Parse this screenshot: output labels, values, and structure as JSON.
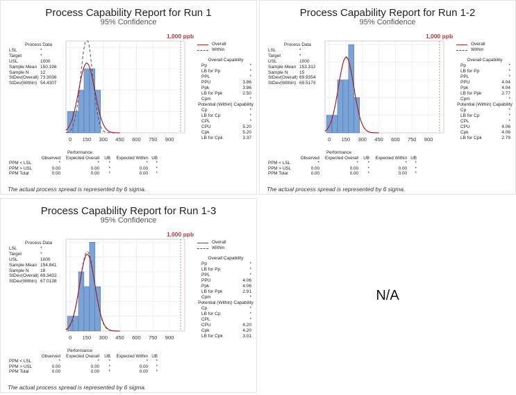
{
  "chart_data": [
    {
      "type": "bar",
      "title": "Process Capability Report for Run 1",
      "subtitle": "95% Confidence",
      "usl_label": "1,000 ppb",
      "usl": 1000,
      "xlim": [
        -38,
        1038
      ],
      "xticks": [
        "0",
        "150",
        "300",
        "450",
        "600",
        "750",
        "900"
      ],
      "xtick_values": [
        0,
        150,
        300,
        450,
        600,
        750,
        900
      ],
      "bin_edges": [
        -25,
        25,
        75,
        125,
        175,
        225,
        275
      ],
      "values": [
        1,
        1,
        2,
        3,
        3,
        2
      ],
      "ymax": 4.3,
      "mean": 150.198,
      "sd_overall": 73.3036,
      "sd_within": 54.4307,
      "n": 12,
      "legend": [
        "Overall",
        "Within"
      ],
      "legend_position": "right",
      "process_data": {
        "header": "Process Data",
        "rows": [
          [
            "LSL",
            "*"
          ],
          [
            "Target",
            "*"
          ],
          [
            "USL",
            "1000"
          ],
          [
            "Sample Mean",
            "150.198"
          ],
          [
            "Sample N",
            "12"
          ],
          [
            "StDev(Overall)",
            "73.3036"
          ],
          [
            "StDev(Within)",
            "54.4307"
          ]
        ]
      },
      "overall_capability": {
        "header": "Overall Capability",
        "rows": [
          [
            "Pp",
            "*"
          ],
          [
            "LB for Pp",
            "*"
          ],
          [
            "PPL",
            "*"
          ],
          [
            "PPU",
            "3.86"
          ],
          [
            "Ppk",
            "3.86"
          ],
          [
            "LB for Ppk",
            "2.50"
          ],
          [
            "Cpm",
            "*"
          ]
        ]
      },
      "within_capability": {
        "header": "Potential (Within) Capability",
        "rows": [
          [
            "Cp",
            "*"
          ],
          [
            "LB for Cp",
            "*"
          ],
          [
            "CPL",
            "*"
          ],
          [
            "CPU",
            "5.20"
          ],
          [
            "Cpk",
            "5.20"
          ],
          [
            "LB for Cpk",
            "3.37"
          ]
        ]
      },
      "performance": {
        "group_header": "Performance",
        "columns": [
          "",
          "Observed",
          "Expected Overall",
          "UB",
          "Expected Within",
          "UB"
        ],
        "rows": [
          [
            "PPM < LSL",
            "*",
            "*",
            "*",
            "*",
            "*"
          ],
          [
            "PPM > USL",
            "0.00",
            "0.00",
            "*",
            "0.00",
            "*"
          ],
          [
            "PPM Total",
            "0.00",
            "0.00",
            "*",
            "0.00",
            "*"
          ]
        ]
      },
      "note": "The actual process spread is represented by 6 sigma."
    },
    {
      "type": "bar",
      "title": "Process Capability Report for Run 1-2",
      "subtitle": "95% Confidence",
      "usl_label": "1,000 ppb",
      "usl": 1000,
      "xlim": [
        -38,
        1038
      ],
      "xticks": [
        "0",
        "150",
        "300",
        "450",
        "600",
        "750",
        "900"
      ],
      "xtick_values": [
        0,
        150,
        300,
        450,
        600,
        750,
        900
      ],
      "bin_edges": [
        -25,
        25,
        75,
        125,
        175,
        225,
        275
      ],
      "values": [
        1,
        1,
        3,
        3,
        5,
        2
      ],
      "ymax": 5.2,
      "mean": 153.312,
      "sd_overall": 69.9354,
      "sd_within": 69.5173,
      "n": 15,
      "legend": [
        "Overall",
        "Within"
      ],
      "legend_position": "right",
      "process_data": {
        "header": "Process Data",
        "rows": [
          [
            "LSL",
            "*"
          ],
          [
            "Target",
            "*"
          ],
          [
            "USL",
            "1000"
          ],
          [
            "Sample Mean",
            "153.312"
          ],
          [
            "Sample N",
            "15"
          ],
          [
            "StDev(Overall)",
            "69.9354"
          ],
          [
            "StDev(Within)",
            "69.5173"
          ]
        ]
      },
      "overall_capability": {
        "header": "Overall Capability",
        "rows": [
          [
            "Pp",
            "*"
          ],
          [
            "LB for Pp",
            "*"
          ],
          [
            "PPL",
            "*"
          ],
          [
            "PPU",
            "4.04"
          ],
          [
            "Ppk",
            "4.04"
          ],
          [
            "LB for Ppk",
            "2.77"
          ],
          [
            "Cpm",
            "*"
          ]
        ]
      },
      "within_capability": {
        "header": "Potential (Within) Capability",
        "rows": [
          [
            "Cp",
            "*"
          ],
          [
            "LB for Cp",
            "*"
          ],
          [
            "CPL",
            "*"
          ],
          [
            "CPU",
            "4.06"
          ],
          [
            "Cpk",
            "4.06"
          ],
          [
            "LB for Cpk",
            "2.79"
          ]
        ]
      },
      "performance": {
        "group_header": "Performance",
        "columns": [
          "",
          "Observed",
          "Expected Overall",
          "UB",
          "Expected Within",
          "UB"
        ],
        "rows": [
          [
            "PPM < LSL",
            "*",
            "*",
            "*",
            "*",
            "*"
          ],
          [
            "PPM > USL",
            "0.00",
            "0.00",
            "*",
            "0.00",
            "*"
          ],
          [
            "PPM Total",
            "0.00",
            "0.00",
            "*",
            "0.00",
            "*"
          ]
        ]
      },
      "note": "The actual process spread is represented by 6 sigma."
    },
    {
      "type": "bar",
      "title": "Process Capability Report for Run 1-3",
      "subtitle": "95% Confidence",
      "usl_label": "1,000 ppb",
      "usl": 1000,
      "xlim": [
        -38,
        1038
      ],
      "xticks": [
        "0",
        "150",
        "300",
        "450",
        "600",
        "750",
        "900"
      ],
      "xtick_values": [
        0,
        150,
        300,
        450,
        600,
        750,
        900
      ],
      "bin_edges": [
        -25,
        25,
        75,
        125,
        175,
        225,
        275
      ],
      "values": [
        1,
        1,
        4,
        3,
        6,
        3
      ],
      "ymax": 6.2,
      "mean": 154.841,
      "sd_overall": 69.3432,
      "sd_within": 67.0138,
      "n": 18,
      "legend": [
        "Overall",
        "Within"
      ],
      "legend_position": "right",
      "process_data": {
        "header": "Process Data",
        "rows": [
          [
            "LSL",
            "*"
          ],
          [
            "Target",
            "*"
          ],
          [
            "USL",
            "1000"
          ],
          [
            "Sample Mean",
            "154.841"
          ],
          [
            "Sample N",
            "18"
          ],
          [
            "StDev(Overall)",
            "69.3432"
          ],
          [
            "StDev(Within)",
            "67.0138"
          ]
        ]
      },
      "overall_capability": {
        "header": "Overall Capability",
        "rows": [
          [
            "Pp",
            "*"
          ],
          [
            "LB for Pp",
            "*"
          ],
          [
            "PPL",
            "*"
          ],
          [
            "PPU",
            "4.06"
          ],
          [
            "Ppk",
            "4.06"
          ],
          [
            "LB for Ppk",
            "2.91"
          ],
          [
            "Cpm",
            "*"
          ]
        ]
      },
      "within_capability": {
        "header": "Potential (Within) Capability",
        "rows": [
          [
            "Cp",
            "*"
          ],
          [
            "LB for Cp",
            "*"
          ],
          [
            "CPL",
            "*"
          ],
          [
            "CPU",
            "4.20"
          ],
          [
            "Cpk",
            "4.20"
          ],
          [
            "LB for Cpk",
            "3.01"
          ]
        ]
      },
      "performance": {
        "group_header": "Performance",
        "columns": [
          "",
          "Observed",
          "Expected Overall",
          "UB",
          "Expected Within",
          "UB"
        ],
        "rows": [
          [
            "PPM < LSL",
            "*",
            "*",
            "*",
            "*",
            "*"
          ],
          [
            "PPM > USL",
            "0.00",
            "0.00",
            "*",
            "0.00",
            "*"
          ],
          [
            "PPM Total",
            "0.00",
            "0.00",
            "*",
            "0.00",
            "*"
          ]
        ]
      },
      "note": "The actual process spread is represented by 6 sigma."
    }
  ],
  "empty_panel": {
    "label": "N/A"
  },
  "colors": {
    "bar_fill": "#7aa3d8",
    "bar_stroke": "#4a6a96",
    "overall": "#a8242a",
    "within": "#555555",
    "usl": "#e08080",
    "usl_label": "#b03a3a"
  }
}
